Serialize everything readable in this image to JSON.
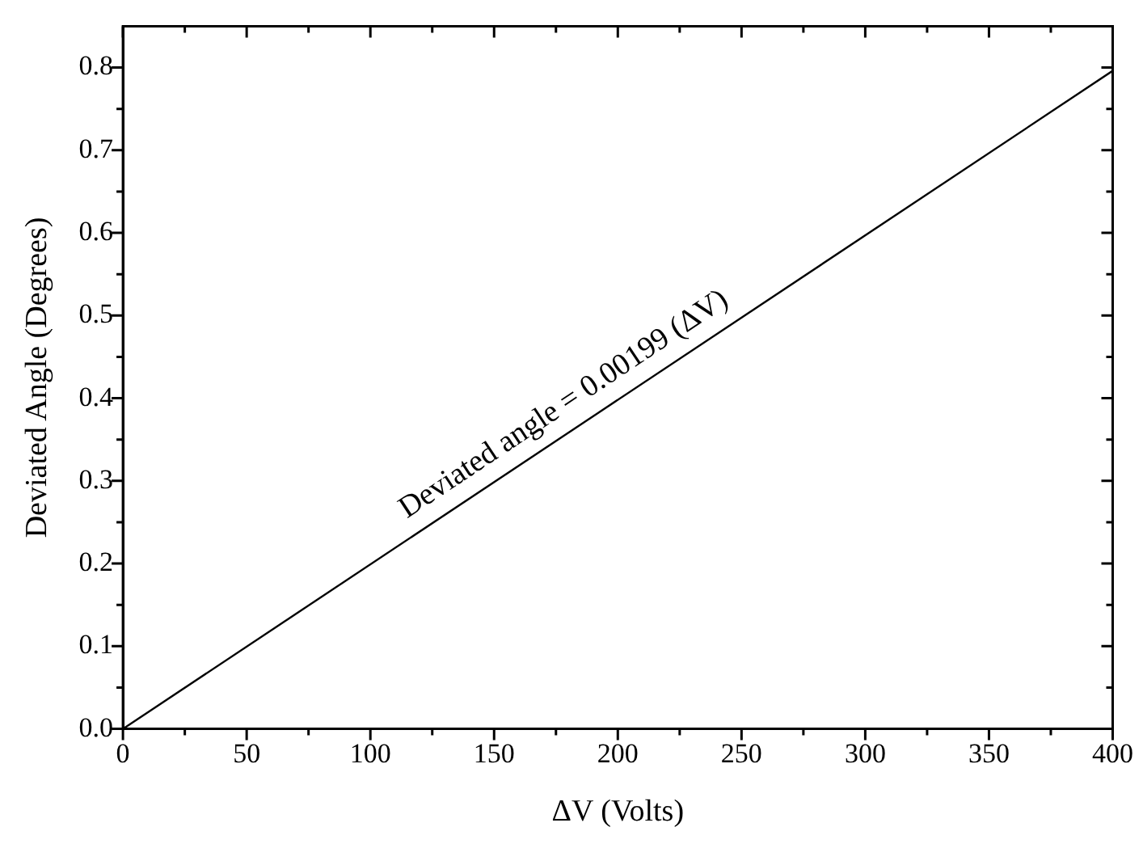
{
  "chart_data": {
    "type": "line",
    "xlabel": "ΔV (Volts)",
    "ylabel": "Deviated Angle (Degrees)",
    "x": [
      0,
      400
    ],
    "series": [
      {
        "color": "#000000",
        "values": [
          0,
          0.796
        ]
      }
    ],
    "xlim": [
      0,
      400
    ],
    "xticks": [
      0,
      {
        "value": 25,
        "label": null
      },
      50,
      {
        "value": 75,
        "label": null
      },
      100,
      {
        "value": 125,
        "label": null
      },
      150,
      {
        "value": 175,
        "label": null
      },
      200,
      {
        "value": 225,
        "label": null
      },
      250,
      {
        "value": 275,
        "label": null
      },
      300,
      {
        "value": 325,
        "label": null
      },
      350,
      {
        "value": 375,
        "label": null
      },
      400
    ],
    "ylim": [
      0,
      0.85
    ],
    "yticks": [
      {
        "value": 0,
        "label": "0.0"
      },
      {
        "value": 0.05,
        "label": null
      },
      0.1,
      {
        "value": 0.15,
        "label": null
      },
      0.2,
      {
        "value": 0.25,
        "label": null
      },
      0.3,
      {
        "value": 0.35,
        "label": null
      },
      0.4,
      {
        "value": 0.45,
        "label": null
      },
      0.5,
      {
        "value": 0.55,
        "label": null
      },
      0.6,
      {
        "value": 0.65,
        "label": null
      },
      0.7,
      {
        "value": 0.75,
        "label": null
      },
      0.8
    ],
    "annotations": [
      "Deviated angle = 0.00199 (ΔV)"
    ],
    "grid": false,
    "legend": false,
    "marker": "none",
    "line_style": "solid"
  }
}
